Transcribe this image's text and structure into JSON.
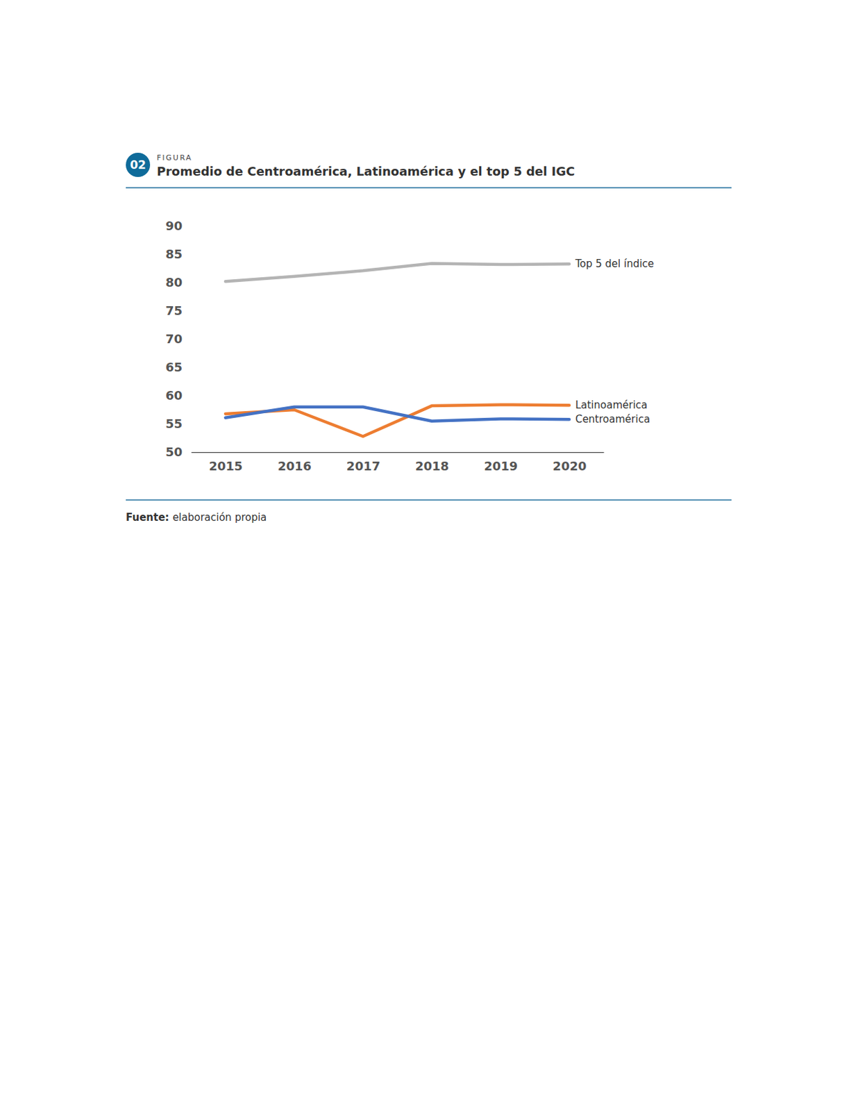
{
  "chart_data": {
    "type": "line",
    "figure_number": "02",
    "figure_label": "FIGURA",
    "title": "Promedio de Centroamérica, Latinoamérica y el top 5 del IGC",
    "source_label": "Fuente:",
    "source": "elaboración propia",
    "categories": [
      "2015",
      "2016",
      "2017",
      "2018",
      "2019",
      "2020"
    ],
    "series": [
      {
        "name": "Top 5 del índice",
        "color": "#b4b4b4",
        "values": [
          80.2,
          81.1,
          82.1,
          83.4,
          83.2,
          83.3
        ]
      },
      {
        "name": "Latinoamérica",
        "color": "#ed7d31",
        "values": [
          56.8,
          57.5,
          52.8,
          58.2,
          58.4,
          58.3
        ]
      },
      {
        "name": "Centroamérica",
        "color": "#4472c4",
        "values": [
          56.1,
          58.0,
          58.0,
          55.5,
          55.9,
          55.8
        ]
      }
    ],
    "ylim": [
      50,
      90
    ],
    "yticks": [
      50,
      55,
      60,
      65,
      70,
      75,
      80,
      85,
      90
    ],
    "grid": false
  }
}
